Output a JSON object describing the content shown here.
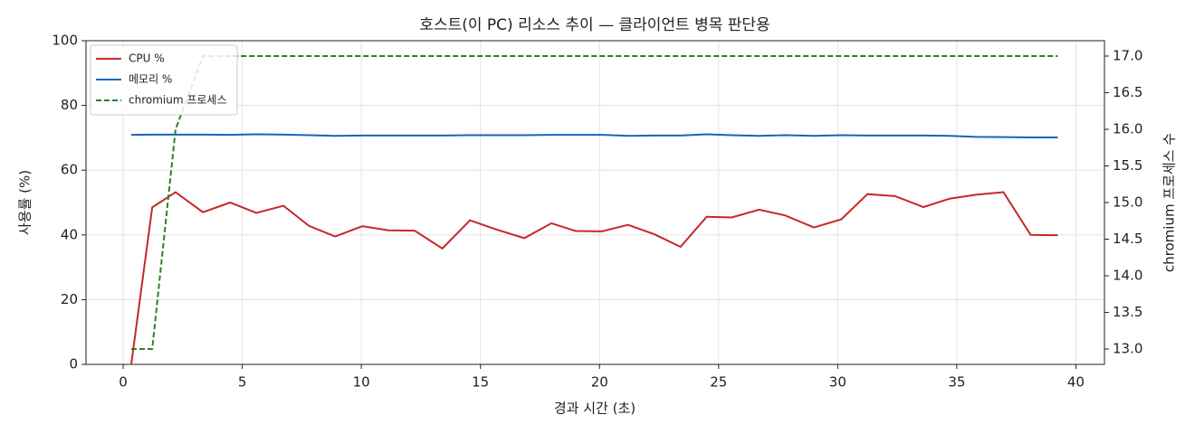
{
  "chart_data": {
    "type": "line",
    "title": "호스트(이 PC) 리소스 추이 — 클라이언트 병목 판단용",
    "x_label": "경과 시간 (초)",
    "y_label": "사용률 (%)",
    "y2_label": "chromium 프로세스 수",
    "x": [
      0.34,
      1.22,
      2.2,
      3.35,
      4.49,
      5.59,
      6.73,
      7.8,
      8.9,
      10.04,
      11.14,
      12.24,
      13.4,
      14.56,
      15.7,
      16.84,
      17.98,
      19.0,
      20.1,
      21.2,
      22.3,
      23.4,
      24.5,
      25.55,
      26.7,
      27.8,
      29.0,
      30.15,
      31.25,
      32.4,
      33.6,
      34.7,
      35.8,
      36.96,
      38.1,
      39.24
    ],
    "series": [
      {
        "name": "CPU %",
        "color": "#c62828",
        "axis": "y",
        "values": [
          0,
          48.5,
          53.2,
          47,
          50,
          46.8,
          49,
          42.8,
          39.5,
          42.7,
          41.4,
          41.3,
          35.8,
          44.5,
          41.6,
          39,
          43.6,
          41.2,
          41.1,
          43.1,
          40.2,
          36.3,
          45.6,
          45.4,
          47.8,
          46,
          42.3,
          44.8,
          52.6,
          52,
          48.6,
          51.2,
          52.4,
          53.2,
          40,
          39.9
        ]
      },
      {
        "name": "메모리 %",
        "color": "#1565c0",
        "axis": "y",
        "values": [
          70.9,
          71,
          71,
          71,
          70.9,
          71.1,
          71,
          70.8,
          70.6,
          70.7,
          70.7,
          70.7,
          70.7,
          70.8,
          70.8,
          70.8,
          70.9,
          70.9,
          70.9,
          70.6,
          70.7,
          70.7,
          71.1,
          70.8,
          70.6,
          70.8,
          70.6,
          70.8,
          70.7,
          70.7,
          70.7,
          70.6,
          70.3,
          70.2,
          70.1,
          70.1
        ]
      },
      {
        "name": "chromium 프로세스",
        "color": "#2e7d32",
        "axis": "y2",
        "dashed": true,
        "values": [
          13,
          13,
          16,
          17,
          17,
          17,
          17,
          17,
          17,
          17,
          17,
          17,
          17,
          17,
          17,
          17,
          17,
          17,
          17,
          17,
          17,
          17,
          17,
          17,
          17,
          17,
          17,
          17,
          17,
          17,
          17,
          17,
          17,
          17,
          17,
          17
        ]
      }
    ],
    "xlim": [
      -1.56,
      41.2
    ],
    "xticks": [
      0,
      5,
      10,
      15,
      20,
      25,
      30,
      35,
      40
    ],
    "ylim": [
      0,
      100
    ],
    "yticks": [
      0,
      20,
      40,
      60,
      80,
      100
    ],
    "y2lim": [
      12.79,
      17.21
    ],
    "y2ticks": [
      {
        "value": 13,
        "label": "13.0"
      },
      {
        "value": 13.5,
        "label": "13.5"
      },
      {
        "value": 14,
        "label": "14.0"
      },
      {
        "value": 14.5,
        "label": "14.5"
      },
      {
        "value": 15,
        "label": "15.0"
      },
      {
        "value": 15.5,
        "label": "15.5"
      },
      {
        "value": 16,
        "label": "16.0"
      },
      {
        "value": 16.5,
        "label": "16.5"
      },
      {
        "value": 17,
        "label": "17.0"
      }
    ],
    "grid": true,
    "legend": "upper left"
  }
}
